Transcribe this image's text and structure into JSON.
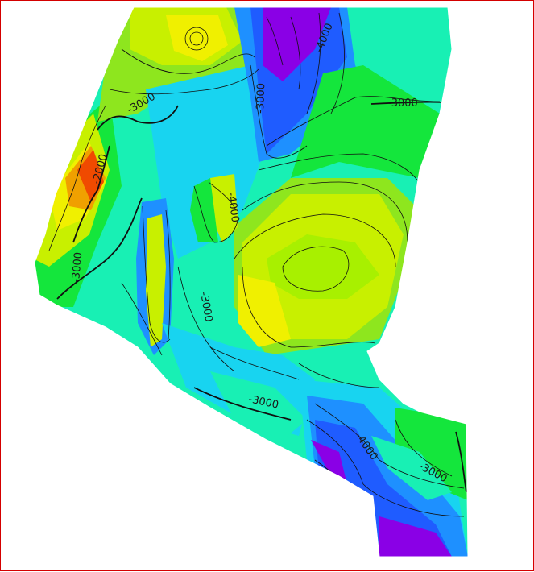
{
  "map": {
    "labels": [
      "-4000",
      "-3000",
      "-3000",
      "-2000",
      "-3000",
      "-4000",
      "-3000",
      "-3000",
      "-3000",
      "-4000",
      "-3000"
    ]
  },
  "colors": {
    "frame": "#d40000",
    "background": "#ffffff",
    "contour": "#101010",
    "deep_violet": "#8a00e6",
    "deep_blue": "#1f5cff",
    "blue": "#1e90ff",
    "cyan": "#18d4f0",
    "aqua_green": "#18f0b4",
    "green": "#14e63c",
    "lime": "#8ee61e",
    "yellow_green": "#c8f000",
    "yellow": "#f0f000",
    "orange": "#f0a000",
    "red_orange": "#f04a00"
  }
}
